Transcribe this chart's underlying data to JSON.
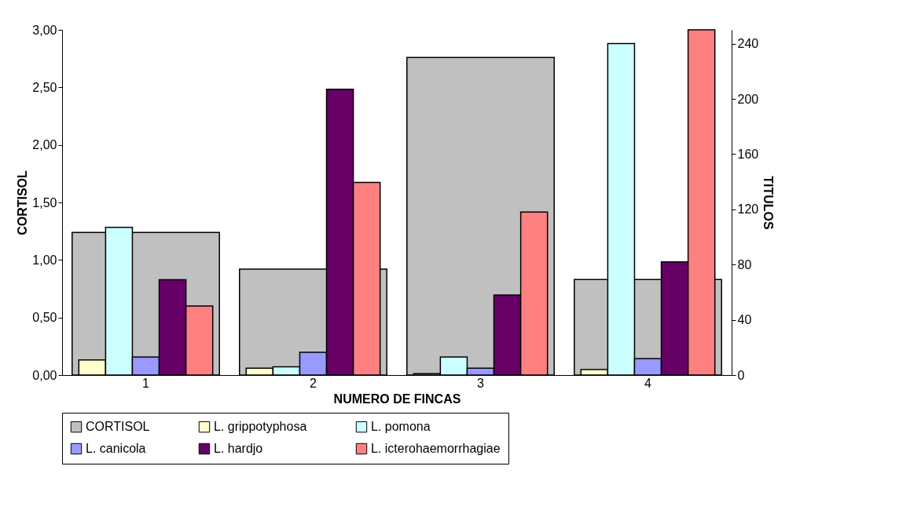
{
  "chart_data": {
    "type": "bar",
    "xlabel": "NUMERO DE FINCAS",
    "ylabel": "CORTISOL",
    "y2label": "TITULOS",
    "categories": [
      "1",
      "2",
      "3",
      "4"
    ],
    "series": [
      {
        "name": "CORTISOL",
        "color": "#c0c0c0",
        "axis": "y",
        "values": [
          1.24,
          0.92,
          2.76,
          0.83
        ]
      },
      {
        "name": "L. grippotyphosa",
        "color": "#ffffcc",
        "axis": "y2",
        "values": [
          11,
          5,
          1,
          4
        ]
      },
      {
        "name": "L. pomona",
        "color": "#ccffff",
        "axis": "y2",
        "values": [
          107,
          6,
          13,
          240
        ]
      },
      {
        "name": "L. canicola",
        "color": "#9999ff",
        "axis": "y2",
        "values": [
          13,
          16.5,
          5,
          12
        ]
      },
      {
        "name": "L. hardjo",
        "color": "#660066",
        "axis": "y2",
        "values": [
          69,
          207,
          58,
          82
        ]
      },
      {
        "name": "L. icterohaemorrhagiae",
        "color": "#ff8080",
        "axis": "y2",
        "values": [
          50,
          139.5,
          118,
          250
        ]
      }
    ],
    "ylim": [
      0,
      3
    ],
    "yticks": [
      {
        "value": 0,
        "label": "0,00"
      },
      {
        "value": 0.5,
        "label": "0,50"
      },
      {
        "value": 1,
        "label": "1,00"
      },
      {
        "value": 1.5,
        "label": "1,50"
      },
      {
        "value": 2,
        "label": "2,00"
      },
      {
        "value": 2.5,
        "label": "2,50"
      },
      {
        "value": 3,
        "label": "3,00"
      }
    ],
    "y2lim": [
      0,
      250
    ],
    "y2ticks": [
      0,
      40,
      80,
      120,
      160,
      200,
      240
    ],
    "legend": "bottom",
    "grid": false
  }
}
